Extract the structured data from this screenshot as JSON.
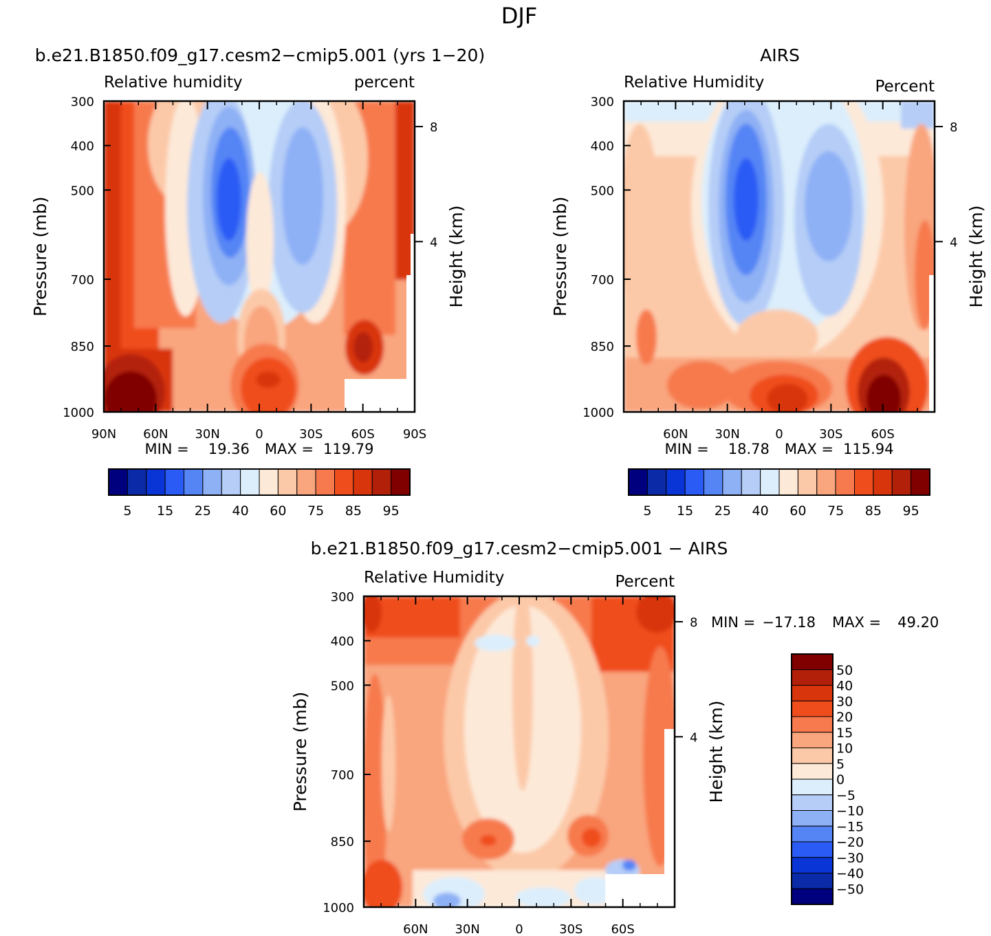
{
  "page_title": "DJF",
  "chart_data": [
    {
      "type": "heatmap",
      "title": "b.e21.B1850.f09_g17.cesm2−cmip5.001 (yrs 1−20)",
      "left_label": "Relative humidity",
      "right_label": "percent",
      "ylabel": "Pressure (mb)",
      "ylabel_right": "Height (km)",
      "y_ticks": [
        "300",
        "400",
        "500",
        "700",
        "850",
        "1000"
      ],
      "y_right_ticks": [
        "8",
        "4"
      ],
      "x_ticks": [
        "90N",
        "60N",
        "30N",
        "0",
        "30S",
        "60S",
        "90S"
      ],
      "stats": {
        "min_label": "MIN =",
        "min": "19.36",
        "max_label": "MAX =",
        "max": "119.79"
      },
      "colorbar": {
        "orientation": "horizontal",
        "tick_labels": [
          "5",
          "15",
          "25",
          "40",
          "60",
          "75",
          "85",
          "95"
        ],
        "colors": [
          "#00007f",
          "#0a2aa8",
          "#0a35d6",
          "#2a5cf5",
          "#5585f5",
          "#8eb0f5",
          "#b5cdf7",
          "#dceefc",
          "#fde9d8",
          "#fcc9a8",
          "#f9a57e",
          "#f77a4e",
          "#f04d1d",
          "#d9350c",
          "#b3200a",
          "#800000"
        ]
      }
    },
    {
      "type": "heatmap",
      "title": "AIRS",
      "left_label": "Relative Humidity",
      "right_label": "Percent",
      "ylabel": "Pressure (mb)",
      "ylabel_right": "Height (km)",
      "y_ticks": [
        "300",
        "400",
        "500",
        "700",
        "850",
        "1000"
      ],
      "y_right_ticks": [
        "8",
        "4"
      ],
      "x_ticks": [
        "60N",
        "30N",
        "0",
        "30S",
        "60S"
      ],
      "stats": {
        "min_label": "MIN =",
        "min": "18.78",
        "max_label": "MAX =",
        "max": "115.94"
      },
      "colorbar": {
        "orientation": "horizontal",
        "tick_labels": [
          "5",
          "15",
          "25",
          "40",
          "60",
          "75",
          "85",
          "95"
        ],
        "colors": [
          "#00007f",
          "#0a2aa8",
          "#0a35d6",
          "#2a5cf5",
          "#5585f5",
          "#8eb0f5",
          "#b5cdf7",
          "#dceefc",
          "#fde9d8",
          "#fcc9a8",
          "#f9a57e",
          "#f77a4e",
          "#f04d1d",
          "#d9350c",
          "#b3200a",
          "#800000"
        ]
      }
    },
    {
      "type": "heatmap",
      "title": "b.e21.B1850.f09_g17.cesm2−cmip5.001 − AIRS",
      "left_label": "Relative Humidity",
      "right_label": "Percent",
      "ylabel": "Pressure (mb)",
      "ylabel_right": "Height (km)",
      "y_ticks": [
        "300",
        "400",
        "500",
        "700",
        "850",
        "1000"
      ],
      "y_right_ticks": [
        "8",
        "4"
      ],
      "x_ticks": [
        "60N",
        "30N",
        "0",
        "30S",
        "60S"
      ],
      "stats": {
        "min_label": "MIN =",
        "min": "−17.18",
        "max_label": "MAX =",
        "max": "49.20"
      },
      "colorbar": {
        "orientation": "vertical",
        "tick_labels": [
          "50",
          "40",
          "30",
          "20",
          "15",
          "10",
          "5",
          "0",
          "−5",
          "−10",
          "−15",
          "−20",
          "−30",
          "−40",
          "−50"
        ],
        "colors": [
          "#800000",
          "#b3200a",
          "#d9350c",
          "#f04d1d",
          "#f77a4e",
          "#f9a57e",
          "#fcc9a8",
          "#fde9d8",
          "#dceefc",
          "#b5cdf7",
          "#8eb0f5",
          "#5585f5",
          "#2a5cf5",
          "#0a35d6",
          "#0a2aa8",
          "#00007f"
        ]
      }
    }
  ]
}
